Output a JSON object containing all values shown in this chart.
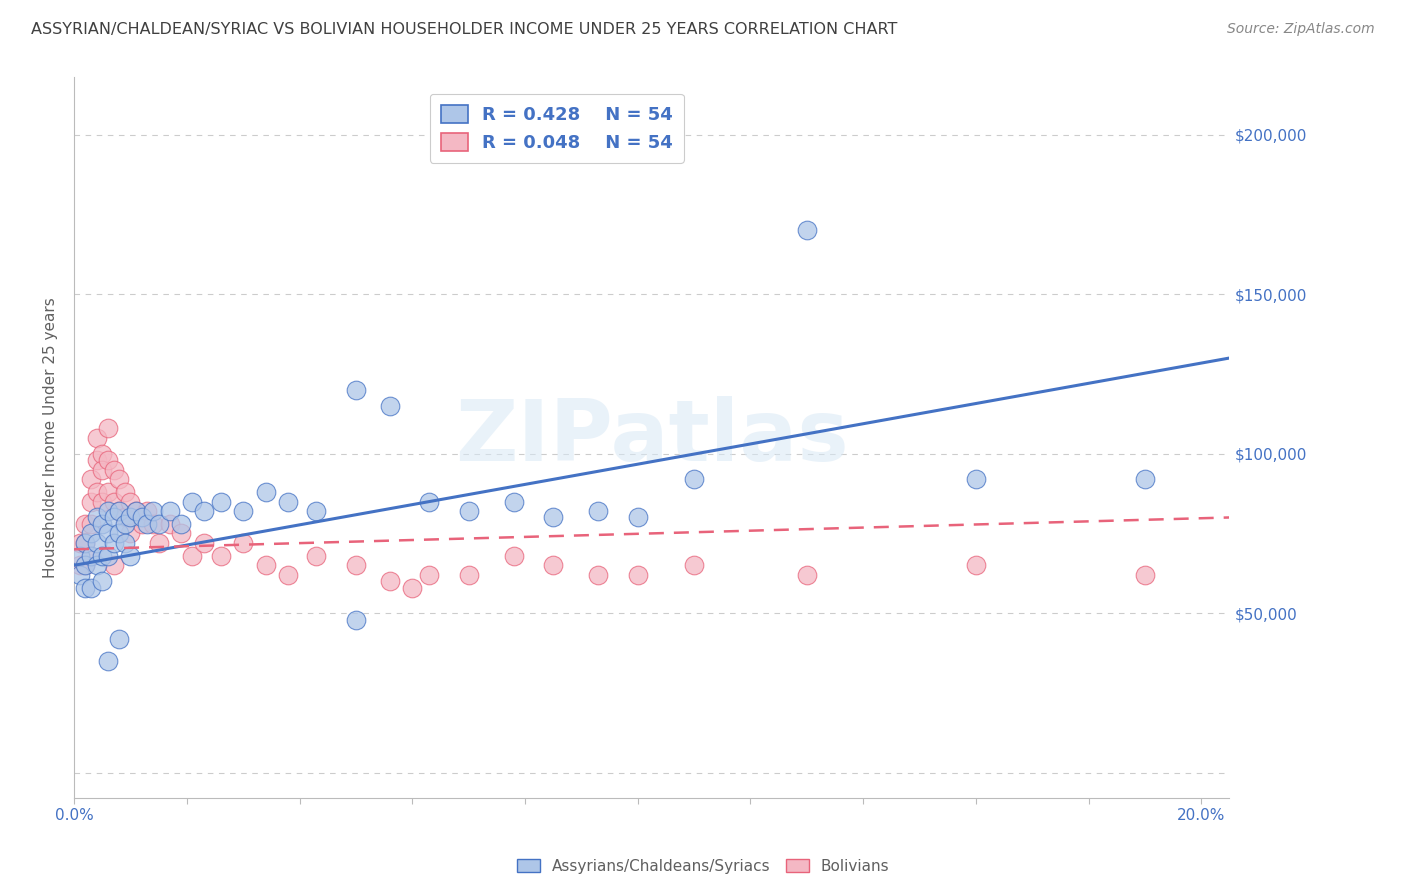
{
  "title": "ASSYRIAN/CHALDEAN/SYRIAC VS BOLIVIAN HOUSEHOLDER INCOME UNDER 25 YEARS CORRELATION CHART",
  "source": "Source: ZipAtlas.com",
  "ylabel": "Householder Income Under 25 years",
  "xlim": [
    0.0,
    0.205
  ],
  "ylim": [
    -8000,
    218000
  ],
  "yticks": [
    0,
    50000,
    100000,
    150000,
    200000
  ],
  "xticks": [
    0.0,
    0.02,
    0.04,
    0.06,
    0.08,
    0.1,
    0.12,
    0.14,
    0.16,
    0.18,
    0.2
  ],
  "watermark_text": "ZIPatlas",
  "blue_color": "#4472c4",
  "blue_scatter_facecolor": "#aec6e8",
  "pink_color": "#e8637a",
  "pink_scatter_facecolor": "#f4b8c4",
  "background_color": "#ffffff",
  "grid_color": "#cccccc",
  "title_color": "#404040",
  "axis_label_color": "#606060",
  "tick_color": "#4472c4",
  "blue_R": "0.428",
  "blue_N": "54",
  "pink_R": "0.048",
  "pink_N": "54",
  "blue_line_x0": 0.0,
  "blue_line_y0": 65000,
  "blue_line_x1": 0.205,
  "blue_line_y1": 130000,
  "pink_line_x0": 0.0,
  "pink_line_y0": 70000,
  "pink_line_x1": 0.205,
  "pink_line_y1": 80000,
  "blue_x": [
    0.001,
    0.001,
    0.002,
    0.002,
    0.002,
    0.003,
    0.003,
    0.003,
    0.004,
    0.004,
    0.004,
    0.005,
    0.005,
    0.005,
    0.006,
    0.006,
    0.006,
    0.007,
    0.007,
    0.008,
    0.008,
    0.009,
    0.009,
    0.01,
    0.01,
    0.011,
    0.012,
    0.013,
    0.014,
    0.015,
    0.017,
    0.019,
    0.021,
    0.023,
    0.026,
    0.03,
    0.034,
    0.038,
    0.043,
    0.05,
    0.056,
    0.063,
    0.07,
    0.078,
    0.085,
    0.093,
    0.1,
    0.11,
    0.13,
    0.16,
    0.006,
    0.008,
    0.05,
    0.19
  ],
  "blue_y": [
    68000,
    62000,
    72000,
    65000,
    58000,
    75000,
    68000,
    58000,
    80000,
    72000,
    65000,
    78000,
    68000,
    60000,
    82000,
    75000,
    68000,
    80000,
    72000,
    82000,
    75000,
    78000,
    72000,
    80000,
    68000,
    82000,
    80000,
    78000,
    82000,
    78000,
    82000,
    78000,
    85000,
    82000,
    85000,
    82000,
    88000,
    85000,
    82000,
    120000,
    115000,
    85000,
    82000,
    85000,
    80000,
    82000,
    80000,
    92000,
    170000,
    92000,
    35000,
    42000,
    48000,
    92000
  ],
  "pink_x": [
    0.001,
    0.001,
    0.002,
    0.002,
    0.002,
    0.003,
    0.003,
    0.003,
    0.004,
    0.004,
    0.004,
    0.005,
    0.005,
    0.005,
    0.006,
    0.006,
    0.006,
    0.007,
    0.007,
    0.008,
    0.008,
    0.009,
    0.009,
    0.01,
    0.01,
    0.011,
    0.012,
    0.013,
    0.014,
    0.015,
    0.017,
    0.019,
    0.021,
    0.023,
    0.026,
    0.03,
    0.034,
    0.038,
    0.043,
    0.05,
    0.056,
    0.063,
    0.07,
    0.078,
    0.085,
    0.093,
    0.1,
    0.11,
    0.13,
    0.16,
    0.003,
    0.007,
    0.06,
    0.19
  ],
  "pink_y": [
    72000,
    65000,
    78000,
    72000,
    65000,
    92000,
    85000,
    78000,
    105000,
    98000,
    88000,
    100000,
    95000,
    85000,
    108000,
    98000,
    88000,
    95000,
    85000,
    92000,
    82000,
    88000,
    80000,
    85000,
    75000,
    82000,
    78000,
    82000,
    78000,
    72000,
    78000,
    75000,
    68000,
    72000,
    68000,
    72000,
    65000,
    62000,
    68000,
    65000,
    60000,
    62000,
    62000,
    68000,
    65000,
    62000,
    62000,
    65000,
    62000,
    65000,
    68000,
    65000,
    58000,
    62000
  ]
}
